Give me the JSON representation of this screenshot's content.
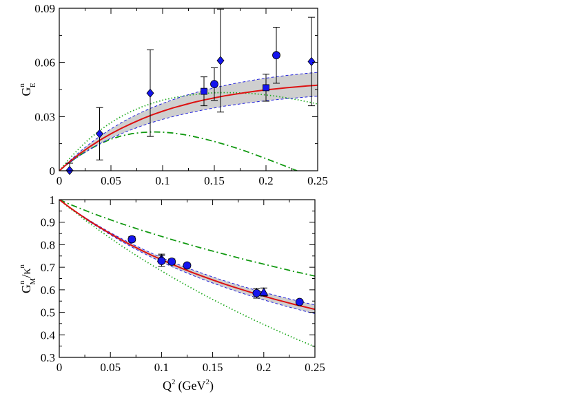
{
  "chart_data": [
    {
      "type": "line",
      "ylabel_main": "G",
      "ylabel_sup": "n",
      "ylabel_sub": "E",
      "xlim": [
        0,
        0.25
      ],
      "ylim": [
        0,
        0.09
      ],
      "xticks": [
        "0",
        "0.05",
        "0.1",
        "0.15",
        "0.2",
        "0.25"
      ],
      "yticks": [
        "0",
        "0.03",
        "0.06",
        "0.09"
      ],
      "xtick_values": [
        0,
        0.05,
        0.1,
        0.15,
        0.2,
        0.25
      ],
      "ytick_values": [
        0,
        0.03,
        0.06,
        0.09
      ],
      "colors": {
        "fit": "#dd1111",
        "band": "#cfcfcf",
        "band_edge": "#2222dd",
        "dotted": "#22aa22",
        "dashdot": "#119911",
        "marker": "#1515ee"
      },
      "series": [
        {
          "name": "fit",
          "style": "solid",
          "x": [
            0,
            0.005,
            0.01,
            0.02,
            0.03,
            0.04,
            0.05,
            0.06,
            0.07,
            0.08,
            0.09,
            0.1,
            0.11,
            0.12,
            0.13,
            0.14,
            0.15,
            0.16,
            0.17,
            0.18,
            0.19,
            0.2,
            0.21,
            0.22,
            0.23,
            0.24,
            0.25
          ],
          "y": [
            0,
            0.0025,
            0.005,
            0.0095,
            0.0135,
            0.0172,
            0.0205,
            0.0235,
            0.0262,
            0.0287,
            0.031,
            0.033,
            0.0348,
            0.0364,
            0.0379,
            0.0392,
            0.0404,
            0.0415,
            0.0424,
            0.0433,
            0.0441,
            0.0448,
            0.0454,
            0.046,
            0.0465,
            0.047,
            0.0474
          ]
        },
        {
          "name": "band-upper",
          "style": "dashed",
          "x": [
            0,
            0.005,
            0.01,
            0.02,
            0.03,
            0.04,
            0.05,
            0.06,
            0.07,
            0.08,
            0.09,
            0.1,
            0.11,
            0.12,
            0.13,
            0.14,
            0.15,
            0.16,
            0.17,
            0.18,
            0.19,
            0.2,
            0.21,
            0.22,
            0.23,
            0.24,
            0.25
          ],
          "y": [
            0,
            0.0027,
            0.0055,
            0.0106,
            0.0152,
            0.0194,
            0.0232,
            0.0266,
            0.0297,
            0.0325,
            0.035,
            0.0373,
            0.0394,
            0.0413,
            0.043,
            0.0445,
            0.0459,
            0.0472,
            0.0484,
            0.0494,
            0.0504,
            0.0513,
            0.0521,
            0.0528,
            0.0534,
            0.054,
            0.0545
          ]
        },
        {
          "name": "band-lower",
          "style": "dashed",
          "x": [
            0,
            0.005,
            0.01,
            0.02,
            0.03,
            0.04,
            0.05,
            0.06,
            0.07,
            0.08,
            0.09,
            0.1,
            0.11,
            0.12,
            0.13,
            0.14,
            0.15,
            0.16,
            0.17,
            0.18,
            0.19,
            0.2,
            0.21,
            0.22,
            0.23,
            0.24,
            0.25
          ],
          "y": [
            0,
            0.0023,
            0.0045,
            0.0085,
            0.012,
            0.0152,
            0.018,
            0.0205,
            0.0228,
            0.0249,
            0.0268,
            0.0285,
            0.03,
            0.0314,
            0.0326,
            0.0338,
            0.0348,
            0.0358,
            0.0366,
            0.0374,
            0.0381,
            0.0388,
            0.0394,
            0.0399,
            0.0404,
            0.0409,
            0.0413
          ]
        },
        {
          "name": "dotted-model",
          "style": "dotted",
          "x": [
            0,
            0.01,
            0.02,
            0.03,
            0.04,
            0.05,
            0.06,
            0.07,
            0.08,
            0.09,
            0.1,
            0.11,
            0.12,
            0.13,
            0.14,
            0.15,
            0.16,
            0.17,
            0.18,
            0.19,
            0.2,
            0.21,
            0.22,
            0.23,
            0.24,
            0.25
          ],
          "y": [
            0,
            0.0068,
            0.0128,
            0.0181,
            0.0227,
            0.0267,
            0.0301,
            0.033,
            0.0354,
            0.0374,
            0.0391,
            0.0404,
            0.0414,
            0.0422,
            0.0428,
            0.0432,
            0.0433,
            0.0432,
            0.043,
            0.0426,
            0.042,
            0.0413,
            0.0404,
            0.0394,
            0.0382,
            0.037
          ]
        },
        {
          "name": "dashdot-model",
          "style": "dashdot",
          "x": [
            0,
            0.01,
            0.02,
            0.03,
            0.04,
            0.05,
            0.06,
            0.07,
            0.08,
            0.09,
            0.1,
            0.11,
            0.12,
            0.13,
            0.14,
            0.15,
            0.16,
            0.17,
            0.18,
            0.19,
            0.2,
            0.21,
            0.22,
            0.23
          ],
          "y": [
            0,
            0.0046,
            0.0086,
            0.0121,
            0.0151,
            0.0175,
            0.0193,
            0.0205,
            0.0212,
            0.0215,
            0.0214,
            0.0209,
            0.0201,
            0.019,
            0.0177,
            0.0162,
            0.0146,
            0.0128,
            0.0109,
            0.0088,
            0.0067,
            0.0045,
            0.0023,
            0
          ]
        }
      ],
      "points": [
        {
          "marker": "diamond",
          "x": 0.01,
          "y": 0.0002,
          "err": 0.004
        },
        {
          "marker": "diamond",
          "x": 0.039,
          "y": 0.0205,
          "err": 0.0145
        },
        {
          "marker": "diamond",
          "x": 0.088,
          "y": 0.043,
          "err": 0.024
        },
        {
          "marker": "square",
          "x": 0.14,
          "y": 0.044,
          "err": 0.008
        },
        {
          "marker": "circle",
          "x": 0.15,
          "y": 0.048,
          "err": 0.009
        },
        {
          "marker": "diamond",
          "x": 0.156,
          "y": 0.061,
          "err": 0.0285
        },
        {
          "marker": "square",
          "x": 0.2,
          "y": 0.046,
          "err": 0.0075
        },
        {
          "marker": "circle",
          "x": 0.21,
          "y": 0.064,
          "err": 0.0155
        },
        {
          "marker": "diamond",
          "x": 0.244,
          "y": 0.0605,
          "err": 0.0245
        }
      ]
    },
    {
      "type": "line",
      "xlabel_main": "Q",
      "xlabel_sup": "2",
      "xlabel_unit": "(GeV",
      "xlabel_unit_sup": "2",
      "xlabel_close": ")",
      "ylabel_main": "G",
      "ylabel_sup1": "n",
      "ylabel_sub": "M",
      "ylabel_slash": "/",
      "ylabel_kappa": "κ",
      "ylabel_sup2": "n",
      "xlim": [
        0,
        0.25
      ],
      "ylim": [
        0.3,
        1.0
      ],
      "xticks": [
        "0",
        "0.05",
        "0.1",
        "0.15",
        "0.2",
        "0.25"
      ],
      "yticks": [
        "0.3",
        "0.4",
        "0.5",
        "0.6",
        "0.7",
        "0.8",
        "0.9",
        "1"
      ],
      "xtick_values": [
        0,
        0.05,
        0.1,
        0.15,
        0.2,
        0.25
      ],
      "ytick_values": [
        0.3,
        0.4,
        0.5,
        0.6,
        0.7,
        0.8,
        0.9,
        1.0
      ],
      "series": [
        {
          "name": "fit",
          "style": "solid",
          "x": [
            0,
            0.01,
            0.02,
            0.03,
            0.04,
            0.05,
            0.06,
            0.07,
            0.08,
            0.09,
            0.1,
            0.11,
            0.12,
            0.13,
            0.14,
            0.15,
            0.16,
            0.17,
            0.18,
            0.19,
            0.2,
            0.21,
            0.22,
            0.23,
            0.24,
            0.25
          ],
          "y": [
            1.0,
            0.966,
            0.934,
            0.904,
            0.876,
            0.849,
            0.823,
            0.799,
            0.776,
            0.754,
            0.734,
            0.714,
            0.695,
            0.677,
            0.66,
            0.644,
            0.628,
            0.613,
            0.599,
            0.585,
            0.572,
            0.559,
            0.547,
            0.535,
            0.524,
            0.513
          ]
        },
        {
          "name": "band-upper",
          "style": "dashed",
          "x": [
            0,
            0.01,
            0.02,
            0.03,
            0.04,
            0.05,
            0.06,
            0.07,
            0.08,
            0.09,
            0.1,
            0.11,
            0.12,
            0.13,
            0.14,
            0.15,
            0.16,
            0.17,
            0.18,
            0.19,
            0.2,
            0.21,
            0.22,
            0.23,
            0.24,
            0.25
          ],
          "y": [
            1.0,
            0.967,
            0.936,
            0.907,
            0.88,
            0.854,
            0.829,
            0.806,
            0.784,
            0.763,
            0.743,
            0.724,
            0.706,
            0.689,
            0.673,
            0.657,
            0.642,
            0.628,
            0.614,
            0.601,
            0.589,
            0.577,
            0.565,
            0.554,
            0.543,
            0.533
          ]
        },
        {
          "name": "band-lower",
          "style": "dashed",
          "x": [
            0,
            0.01,
            0.02,
            0.03,
            0.04,
            0.05,
            0.06,
            0.07,
            0.08,
            0.09,
            0.1,
            0.11,
            0.12,
            0.13,
            0.14,
            0.15,
            0.16,
            0.17,
            0.18,
            0.19,
            0.2,
            0.21,
            0.22,
            0.23,
            0.24,
            0.25
          ],
          "y": [
            1.0,
            0.965,
            0.932,
            0.901,
            0.872,
            0.844,
            0.817,
            0.792,
            0.768,
            0.745,
            0.724,
            0.703,
            0.684,
            0.665,
            0.647,
            0.63,
            0.614,
            0.598,
            0.583,
            0.569,
            0.555,
            0.542,
            0.529,
            0.517,
            0.505,
            0.494
          ]
        },
        {
          "name": "dotted-model",
          "style": "dotted",
          "x": [
            0,
            0.01,
            0.02,
            0.03,
            0.04,
            0.05,
            0.06,
            0.07,
            0.08,
            0.09,
            0.1,
            0.11,
            0.12,
            0.13,
            0.14,
            0.15,
            0.16,
            0.17,
            0.18,
            0.19,
            0.2,
            0.21,
            0.22,
            0.23,
            0.24,
            0.25
          ],
          "y": [
            1.0,
            0.963,
            0.928,
            0.894,
            0.861,
            0.829,
            0.798,
            0.768,
            0.739,
            0.711,
            0.684,
            0.657,
            0.631,
            0.606,
            0.581,
            0.557,
            0.534,
            0.511,
            0.489,
            0.467,
            0.446,
            0.425,
            0.405,
            0.385,
            0.366,
            0.347
          ]
        },
        {
          "name": "dashdot-model",
          "style": "dashdot",
          "x": [
            0,
            0.01,
            0.02,
            0.03,
            0.04,
            0.05,
            0.06,
            0.07,
            0.08,
            0.09,
            0.1,
            0.11,
            0.12,
            0.13,
            0.14,
            0.15,
            0.16,
            0.17,
            0.18,
            0.19,
            0.2,
            0.21,
            0.22,
            0.23,
            0.24,
            0.25
          ],
          "y": [
            1.0,
            0.98,
            0.962,
            0.944,
            0.927,
            0.911,
            0.895,
            0.88,
            0.865,
            0.851,
            0.837,
            0.823,
            0.81,
            0.797,
            0.784,
            0.772,
            0.76,
            0.748,
            0.736,
            0.725,
            0.714,
            0.703,
            0.692,
            0.681,
            0.671,
            0.661
          ]
        }
      ],
      "points": [
        {
          "marker": "circle",
          "x": 0.071,
          "y": 0.824,
          "err": 0.012
        },
        {
          "marker": "triangle",
          "x": 0.1,
          "y": 0.74,
          "err": 0.018
        },
        {
          "marker": "circle",
          "x": 0.1,
          "y": 0.728,
          "err": 0.024
        },
        {
          "marker": "circle",
          "x": 0.11,
          "y": 0.725,
          "err": 0.012
        },
        {
          "marker": "circle",
          "x": 0.125,
          "y": 0.708,
          "err": 0.01
        },
        {
          "marker": "circle",
          "x": 0.193,
          "y": 0.585,
          "err": 0.022
        },
        {
          "marker": "triangle",
          "x": 0.2,
          "y": 0.59,
          "err": 0.018
        },
        {
          "marker": "circle",
          "x": 0.235,
          "y": 0.546,
          "err": 0.008
        }
      ]
    }
  ]
}
